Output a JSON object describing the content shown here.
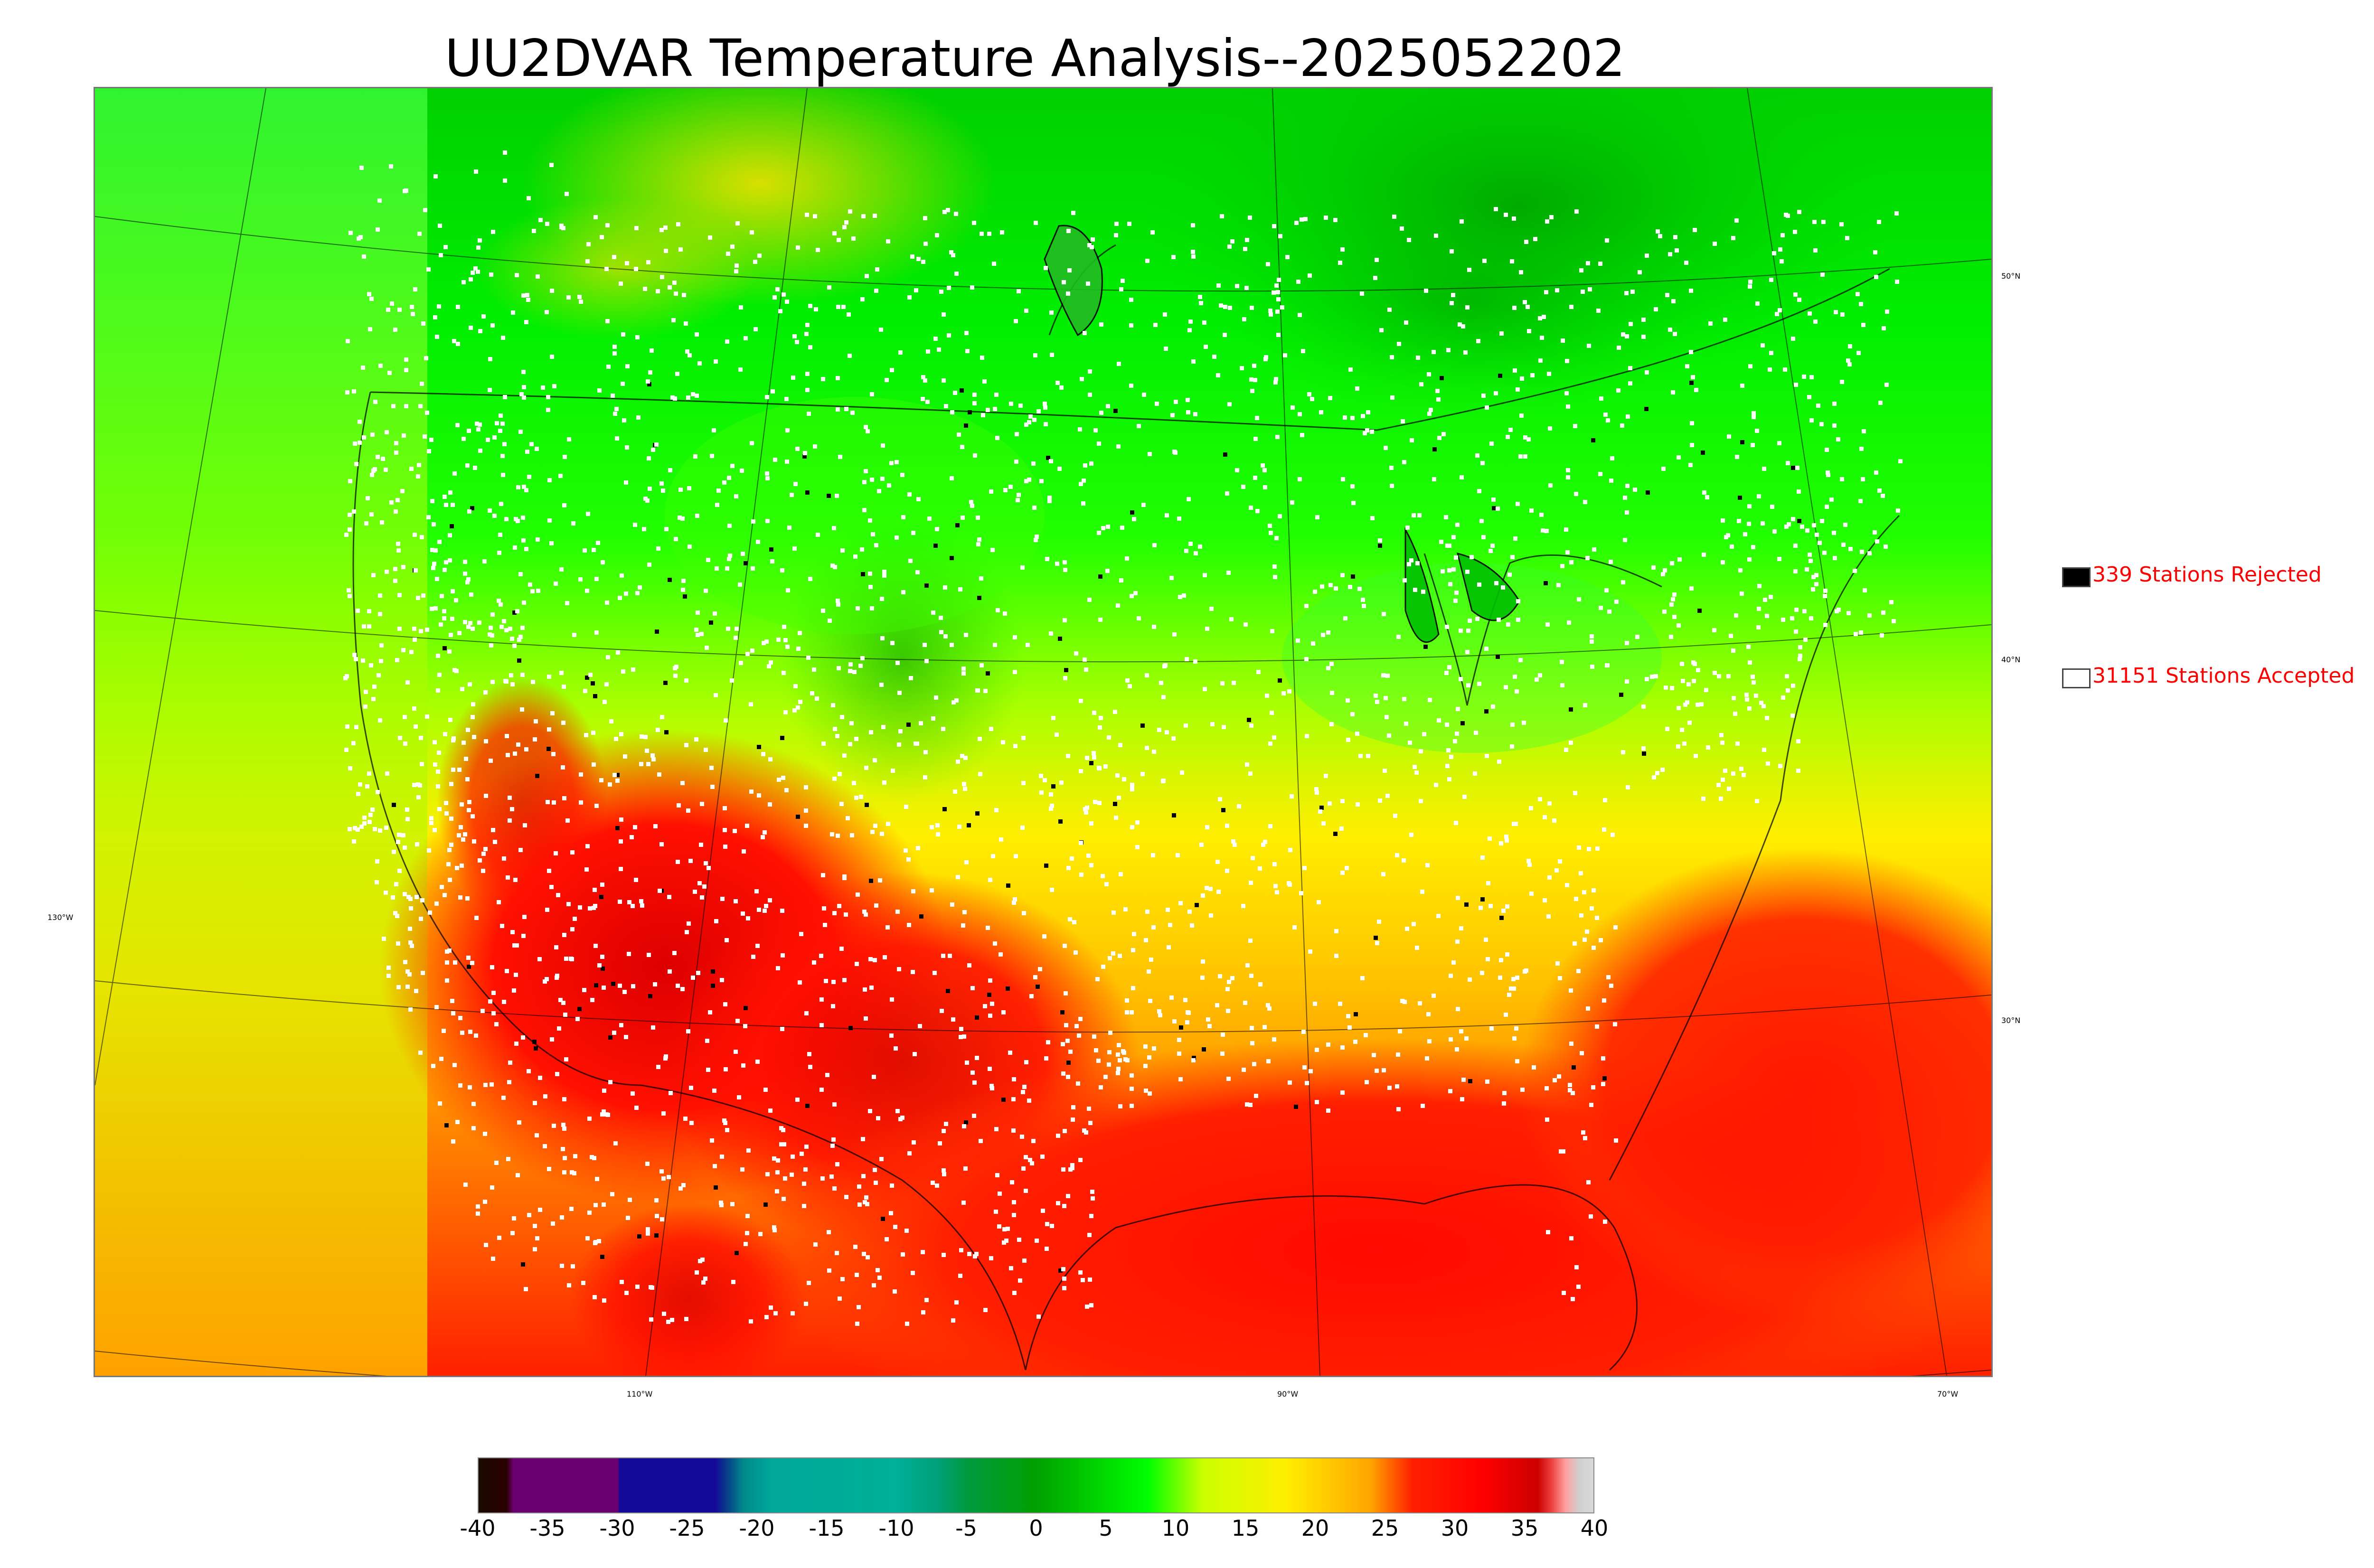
{
  "title": "UU2DVAR Temperature Analysis--2025052202",
  "legend": {
    "rejected": {
      "label": "339 Stations Rejected",
      "color": "#000000"
    },
    "accepted": {
      "label": "31151 Stations Accepted",
      "color": "#ffffff"
    }
  },
  "map_labels": {
    "lat_50": "50°N",
    "lat_40": "40°N",
    "lat_30": "30°N",
    "lon_130": "130°W",
    "lon_110": "110°W",
    "lon_90": "90°W",
    "lon_70": "70°W"
  },
  "colorbar": {
    "min": -40,
    "max": 40,
    "ticks": [
      "-40",
      "-35",
      "-30",
      "-25",
      "-20",
      "-15",
      "-10",
      "-5",
      "0",
      "5",
      "10",
      "15",
      "20",
      "25",
      "30",
      "35",
      "40"
    ],
    "stops": [
      {
        "value": -40,
        "color": "#1a0a00"
      },
      {
        "value": -38,
        "color": "#2a0000"
      },
      {
        "value": -37.5,
        "color": "#6a0070"
      },
      {
        "value": -30,
        "color": "#6a0070"
      },
      {
        "value": -29.9,
        "color": "#140a9a"
      },
      {
        "value": -23,
        "color": "#140a9a"
      },
      {
        "value": -22.5,
        "color": "#0a2a8a"
      },
      {
        "value": -21,
        "color": "#008a8a"
      },
      {
        "value": -19,
        "color": "#00a89a"
      },
      {
        "value": -10,
        "color": "#00b098"
      },
      {
        "value": -7,
        "color": "#00a078"
      },
      {
        "value": -5,
        "color": "#009a40"
      },
      {
        "value": 0,
        "color": "#00a000"
      },
      {
        "value": 8,
        "color": "#00ff00"
      },
      {
        "value": 12,
        "color": "#ccff00"
      },
      {
        "value": 18,
        "color": "#ffee00"
      },
      {
        "value": 24,
        "color": "#ffa500"
      },
      {
        "value": 27,
        "color": "#ff2000"
      },
      {
        "value": 32,
        "color": "#ff0000"
      },
      {
        "value": 36,
        "color": "#cc0000"
      },
      {
        "value": 37,
        "color": "#ee4040"
      },
      {
        "value": 38,
        "color": "#ffa0a0"
      },
      {
        "value": 39,
        "color": "#d0d0d0"
      },
      {
        "value": 40,
        "color": "#d8d8d8"
      }
    ]
  },
  "colors": {
    "cold_north": "#00c800",
    "cool": "#00ff00",
    "mild": "#ccff00",
    "warm": "#ffd700",
    "hot": "#ff8c00",
    "very_hot": "#ff0000",
    "extreme": "#cc0000"
  }
}
